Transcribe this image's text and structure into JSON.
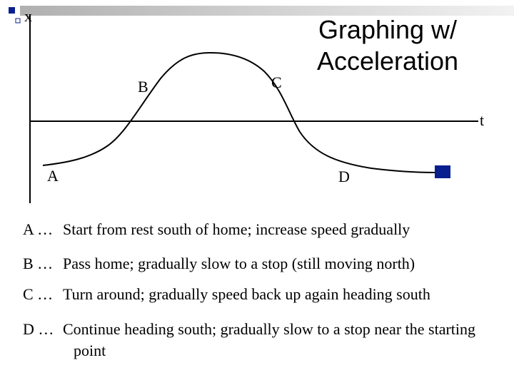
{
  "title": {
    "lines": [
      "Graphing w/",
      "Acceleration"
    ]
  },
  "graph": {
    "y_axis_label": "x",
    "x_axis_label": "t",
    "point_labels": [
      "A",
      "B",
      "C",
      "D"
    ]
  },
  "items": [
    {
      "key": "A …",
      "text": "Start from rest south of home; increase speed gradually"
    },
    {
      "key": "B …",
      "text": "Pass home; gradually slow to a stop (still moving north)"
    },
    {
      "key": "C …",
      "text": "Turn around; gradually speed back up again heading south"
    },
    {
      "key": "D …",
      "text": "Continue heading south; gradually slow to a stop near the starting point"
    }
  ]
}
